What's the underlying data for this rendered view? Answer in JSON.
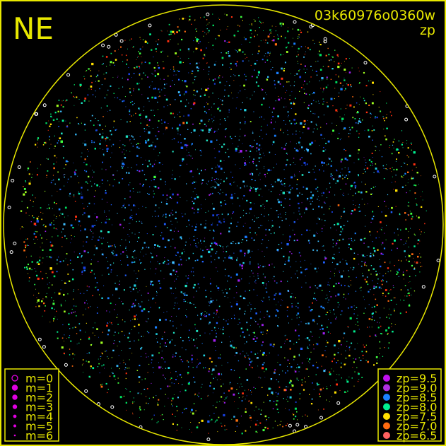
{
  "title": {
    "corner": "NE",
    "image_id": "03k60976o0360w",
    "quantity": "zp"
  },
  "colors": {
    "frame": "#e8e800",
    "background": "#000000",
    "saturated": "#ffffff"
  },
  "chart_data": {
    "type": "scatter",
    "description_level": "sky map of stars within all-sky circle, colored by zp, sized by magnitude",
    "size_legend": {
      "entries": [
        {
          "label": "m=0",
          "style": "open-circle"
        },
        {
          "label": "m=1"
        },
        {
          "label": "m=2"
        },
        {
          "label": "m=3"
        },
        {
          "label": "m=4"
        },
        {
          "label": "m=5"
        },
        {
          "label": "m=6"
        }
      ],
      "color": "#e000e0",
      "placement": "bottom-left"
    },
    "color_legend": {
      "entries": [
        {
          "label": "zp=9.5",
          "value": 9.5,
          "color": "#c010f0"
        },
        {
          "label": "zp=9.0",
          "value": 9.0,
          "color": "#b030e0"
        },
        {
          "label": "zp=8.5",
          "value": 8.5,
          "color": "#1a80ff"
        },
        {
          "label": "zp=8.0",
          "value": 8.0,
          "color": "#00f090"
        },
        {
          "label": "zp=7.5",
          "value": 7.5,
          "color": "#ffe000"
        },
        {
          "label": "zp=7.0",
          "value": 7.0,
          "color": "#ff6a10"
        },
        {
          "label": "zp=6.5",
          "value": 6.5,
          "color": "#ff6060"
        }
      ],
      "placement": "bottom-right"
    }
  }
}
